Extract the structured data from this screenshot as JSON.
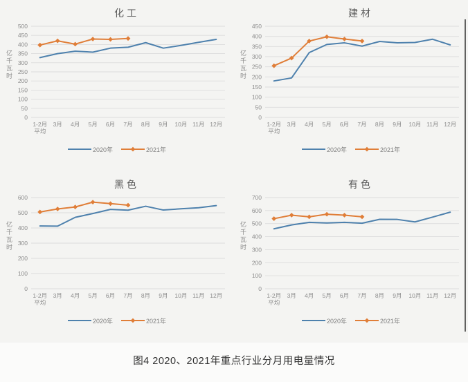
{
  "page": {
    "caption": "图4 2020、2021年重点行业分月用电量情况"
  },
  "colors": {
    "blue_2020": "#4E81AD",
    "orange_2021": "#E07E38",
    "gridline": "#dcdcdc",
    "axis_text": "#8c8c8c",
    "title_text": "#595959"
  },
  "chart_data": [
    {
      "type": "line",
      "title": "化工",
      "ylabel": "亿千瓦时",
      "ylim": [
        0,
        500
      ],
      "ystep": 50,
      "grid": true,
      "legend_position": "bottom",
      "categories": [
        "1-2月\n平均",
        "3月",
        "4月",
        "5月",
        "6月",
        "7月",
        "8月",
        "9月",
        "10月",
        "11月",
        "12月"
      ],
      "series": [
        {
          "name": "2020年",
          "color": "#4E81AD",
          "marker": "none",
          "values": [
            328,
            350,
            363,
            358,
            380,
            385,
            410,
            380,
            395,
            412,
            428
          ]
        },
        {
          "name": "2021年",
          "color": "#E07E38",
          "marker": "diamond",
          "values": [
            397,
            420,
            402,
            430,
            428,
            433
          ]
        }
      ]
    },
    {
      "type": "line",
      "title": "建材",
      "ylabel": "亿千瓦时",
      "ylim": [
        0,
        450
      ],
      "ystep": 50,
      "grid": true,
      "legend_position": "bottom",
      "categories": [
        "1-2月\n平均",
        "3月",
        "4月",
        "5月",
        "6月",
        "7月",
        "8月",
        "9月",
        "10月",
        "11月",
        "12月"
      ],
      "series": [
        {
          "name": "2020年",
          "color": "#4E81AD",
          "marker": "none",
          "values": [
            180,
            195,
            320,
            360,
            368,
            352,
            375,
            368,
            370,
            386,
            358
          ]
        },
        {
          "name": "2021年",
          "color": "#E07E38",
          "marker": "diamond",
          "values": [
            255,
            293,
            377,
            398,
            387,
            377
          ]
        }
      ]
    },
    {
      "type": "line",
      "title": "黑色",
      "ylabel": "亿千瓦时",
      "ylim": [
        0,
        600
      ],
      "ystep": 100,
      "grid": true,
      "legend_position": "bottom",
      "categories": [
        "1-2月\n平均",
        "3月",
        "4月",
        "5月",
        "6月",
        "7月",
        "8月",
        "9月",
        "10月",
        "11月",
        "12月"
      ],
      "series": [
        {
          "name": "2020年",
          "color": "#4E81AD",
          "marker": "none",
          "values": [
            413,
            412,
            470,
            495,
            522,
            517,
            543,
            518,
            526,
            533,
            547
          ]
        },
        {
          "name": "2021年",
          "color": "#E07E38",
          "marker": "diamond",
          "values": [
            505,
            525,
            538,
            570,
            560,
            550
          ]
        }
      ]
    },
    {
      "type": "line",
      "title": "有色",
      "ylabel": "亿千瓦时",
      "ylim": [
        0,
        700
      ],
      "ystep": 100,
      "grid": true,
      "legend_position": "bottom",
      "categories": [
        "1-2月\n平均",
        "3月",
        "4月",
        "5月",
        "6月",
        "7月",
        "8月",
        "9月",
        "10月",
        "11月",
        "12月"
      ],
      "series": [
        {
          "name": "2020年",
          "color": "#4E81AD",
          "marker": "none",
          "values": [
            460,
            490,
            510,
            505,
            510,
            503,
            533,
            532,
            513,
            550,
            588
          ]
        },
        {
          "name": "2021年",
          "color": "#E07E38",
          "marker": "diamond",
          "values": [
            538,
            565,
            552,
            572,
            565,
            552
          ]
        }
      ]
    }
  ]
}
